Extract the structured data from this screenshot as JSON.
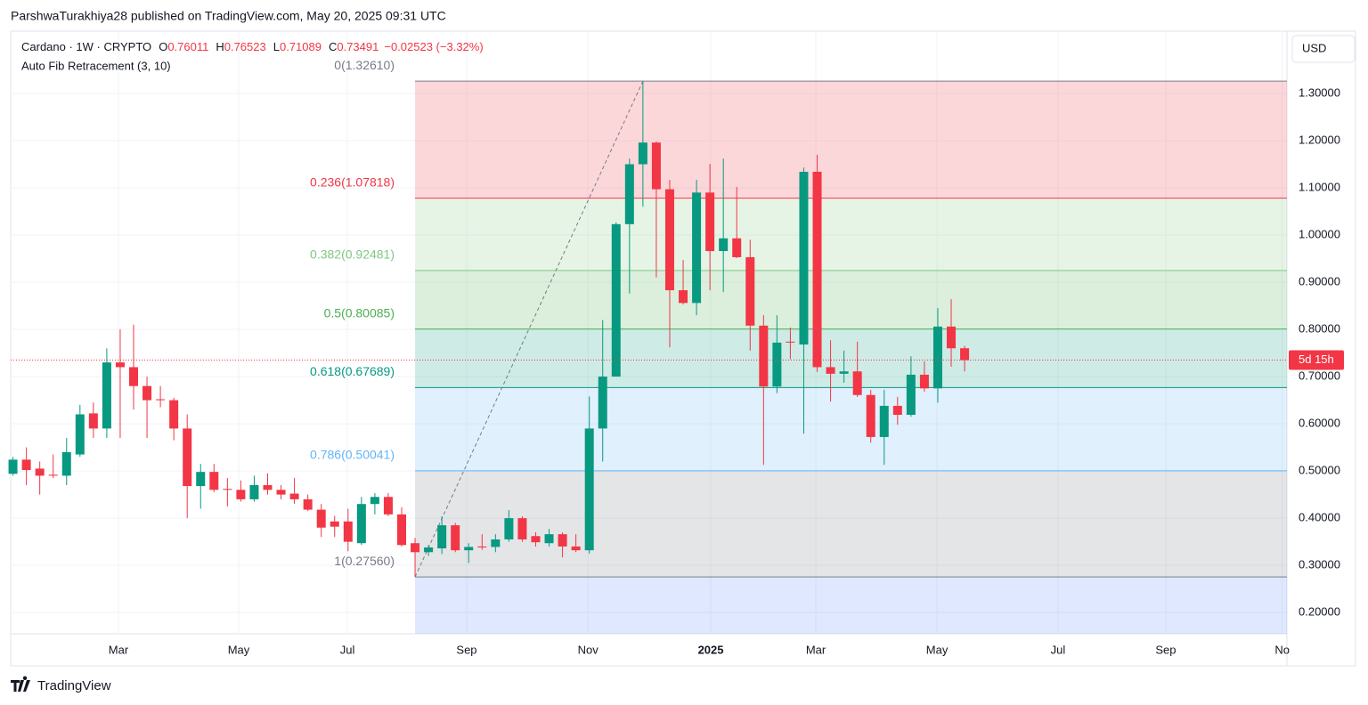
{
  "attribution": "ParshwaTurakhiya28 published on TradingView.com, May 20, 2025 09:31 UTC",
  "brand": "TradingView",
  "currency": "USD",
  "chart_data": {
    "type": "candlestick",
    "symbol": "Cardano · 1W · CRYPTO",
    "ohlc_labels": [
      "O",
      "H",
      "L",
      "C"
    ],
    "change": "−0.02523 (−3.32%)",
    "indicator": "Auto Fib Retracement (3, 10)",
    "open": [
      0.494,
      0.524,
      0.505,
      0.492,
      0.49,
      0.535,
      0.622,
      0.59,
      0.73,
      0.72,
      0.68,
      0.652,
      0.65,
      0.59,
      0.468,
      0.498,
      0.462,
      0.46,
      0.44,
      0.47,
      0.46,
      0.452,
      0.44,
      0.418,
      0.393,
      0.393,
      0.347,
      0.43,
      0.445,
      0.408,
      0.347,
      0.328,
      0.336,
      0.385,
      0.332,
      0.34,
      0.339,
      0.355,
      0.4,
      0.362,
      0.347,
      0.366,
      0.34,
      0.332,
      0.59,
      0.7,
      1.023,
      1.15,
      1.196,
      1.097,
      0.883,
      0.856,
      1.09,
      0.966,
      0.993,
      0.953,
      0.808,
      0.679,
      0.774,
      0.768,
      1.134,
      0.72,
      0.706,
      0.711,
      0.661,
      0.572,
      0.638,
      0.619,
      0.704,
      0.675,
      0.806,
      0.76011
    ],
    "high": [
      0.53,
      0.55,
      0.52,
      0.535,
      0.57,
      0.64,
      0.645,
      0.76,
      0.8,
      0.81,
      0.7,
      0.68,
      0.655,
      0.62,
      0.515,
      0.515,
      0.485,
      0.48,
      0.49,
      0.495,
      0.47,
      0.485,
      0.45,
      0.43,
      0.405,
      0.42,
      0.445,
      0.453,
      0.453,
      0.423,
      0.358,
      0.343,
      0.404,
      0.39,
      0.347,
      0.366,
      0.366,
      0.417,
      0.404,
      0.37,
      0.377,
      0.37,
      0.366,
      0.658,
      0.82,
      1.027,
      1.162,
      1.325,
      1.198,
      1.117,
      0.947,
      1.117,
      1.151,
      1.162,
      1.102,
      0.99,
      0.83,
      0.83,
      0.804,
      1.143,
      1.17,
      0.777,
      0.755,
      0.774,
      0.672,
      0.672,
      0.657,
      0.743,
      0.732,
      0.845,
      0.864,
      0.76523
    ],
    "low": [
      0.49,
      0.47,
      0.45,
      0.485,
      0.47,
      0.53,
      0.57,
      0.57,
      0.57,
      0.63,
      0.57,
      0.635,
      0.565,
      0.4,
      0.42,
      0.455,
      0.425,
      0.435,
      0.435,
      0.45,
      0.44,
      0.43,
      0.415,
      0.36,
      0.36,
      0.33,
      0.343,
      0.408,
      0.404,
      0.34,
      0.276,
      0.32,
      0.324,
      0.328,
      0.305,
      0.333,
      0.328,
      0.35,
      0.35,
      0.34,
      0.34,
      0.317,
      0.328,
      0.325,
      0.52,
      0.7,
      0.876,
      1.06,
      0.91,
      0.762,
      0.853,
      0.83,
      0.883,
      0.879,
      0.951,
      0.755,
      0.513,
      0.665,
      0.737,
      0.579,
      0.71,
      0.647,
      0.687,
      0.657,
      0.56,
      0.513,
      0.598,
      0.615,
      0.668,
      0.645,
      0.721,
      0.71089
    ],
    "close": [
      0.524,
      0.502,
      0.49,
      0.49,
      0.54,
      0.62,
      0.59,
      0.73,
      0.72,
      0.68,
      0.65,
      0.65,
      0.59,
      0.468,
      0.498,
      0.46,
      0.46,
      0.44,
      0.47,
      0.46,
      0.45,
      0.44,
      0.418,
      0.38,
      0.382,
      0.35,
      0.43,
      0.445,
      0.408,
      0.343,
      0.328,
      0.338,
      0.385,
      0.332,
      0.339,
      0.338,
      0.355,
      0.4,
      0.355,
      0.349,
      0.366,
      0.34,
      0.332,
      0.59,
      0.7,
      1.023,
      1.15,
      1.196,
      1.097,
      0.883,
      0.856,
      1.09,
      0.966,
      0.993,
      0.953,
      0.808,
      0.679,
      0.772,
      0.772,
      1.134,
      0.72,
      0.706,
      0.711,
      0.661,
      0.572,
      0.638,
      0.619,
      0.704,
      0.675,
      0.806,
      0.76,
      0.73491
    ],
    "up_color": "#089981",
    "down_color": "#f23645",
    "xlim": [
      -0.17,
      95.05
    ],
    "xticks": [
      {
        "value": 7.87,
        "label": "Mar"
      },
      {
        "value": 16.84,
        "label": "May"
      },
      {
        "value": 24.95,
        "label": "Jul"
      },
      {
        "value": 33.85,
        "label": "Sep"
      },
      {
        "value": 42.9,
        "label": "Nov"
      },
      {
        "value": 52.06,
        "label": "2025"
      },
      {
        "value": 59.9,
        "label": "Mar"
      },
      {
        "value": 68.94,
        "label": "May"
      },
      {
        "value": 77.97,
        "label": "Jul"
      },
      {
        "value": 86.01,
        "label": "Sep"
      },
      {
        "value": 94.7,
        "label": "No"
      }
    ],
    "ylim": [
      0.155,
      1.432
    ],
    "yticks": [
      {
        "value": 0.2,
        "label": "0.20000"
      },
      {
        "value": 0.3,
        "label": "0.30000"
      },
      {
        "value": 0.4,
        "label": "0.40000"
      },
      {
        "value": 0.5,
        "label": "0.50000"
      },
      {
        "value": 0.6,
        "label": "0.60000"
      },
      {
        "value": 0.7,
        "label": "0.70000"
      },
      {
        "value": 0.8,
        "label": "0.80000"
      },
      {
        "value": 0.9,
        "label": "0.90000"
      },
      {
        "value": 1.0,
        "label": "1.00000"
      },
      {
        "value": 1.1,
        "label": "1.10000"
      },
      {
        "value": 1.2,
        "label": "1.20000"
      },
      {
        "value": 1.3,
        "label": "1.30000"
      }
    ],
    "grid": true,
    "countdown": "5d 15h",
    "fib": {
      "start": 30,
      "trend_end": 47,
      "levels": [
        {
          "label": "0(1.32610)",
          "value": 1.3261,
          "color": "#787b86"
        },
        {
          "label": "0.236(1.07818)",
          "value": 1.07818,
          "color": "#f23645"
        },
        {
          "label": "0.382(0.92481)",
          "value": 0.92481,
          "color": "#81c784"
        },
        {
          "label": "0.5(0.80085)",
          "value": 0.80085,
          "color": "#4caf50"
        },
        {
          "label": "0.618(0.67689)",
          "value": 0.67689,
          "color": "#089981"
        },
        {
          "label": "0.786(0.50041)",
          "value": 0.50041,
          "color": "#64b5f6"
        },
        {
          "label": "1(0.27560)",
          "value": 0.2756,
          "color": "#787b86"
        }
      ]
    }
  }
}
